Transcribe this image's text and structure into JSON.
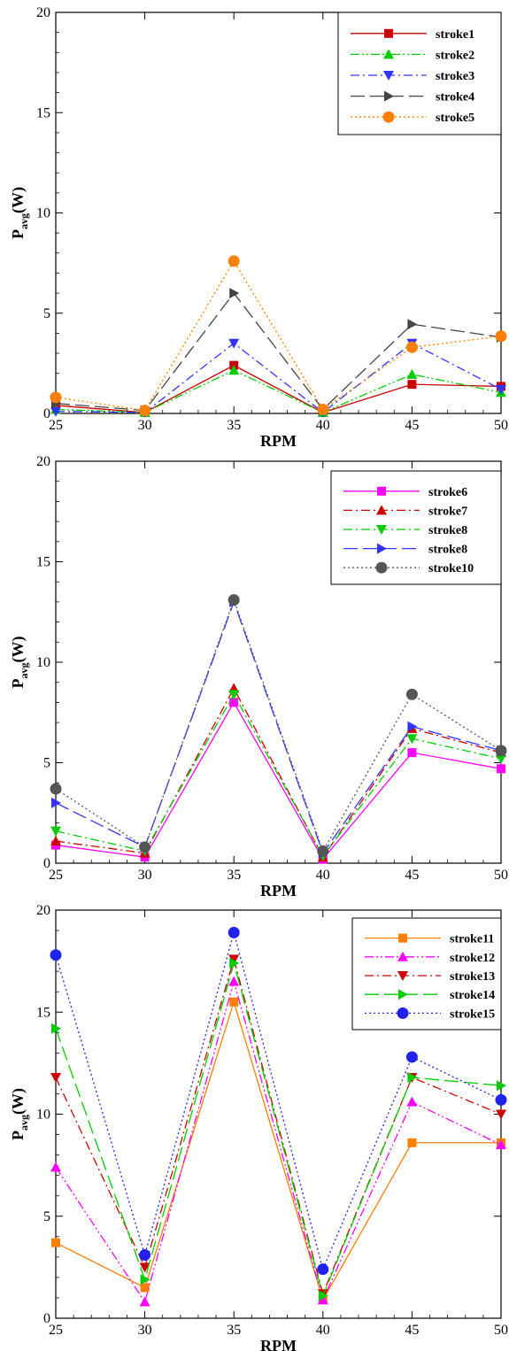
{
  "chart_data": [
    {
      "type": "line",
      "xlabel": "RPM",
      "ylabel": "P",
      "ylabel_sub": "avg",
      "ylabel_unit": "(W)",
      "xlim": [
        25,
        50
      ],
      "ylim": [
        0,
        20
      ],
      "x": [
        25,
        30,
        35,
        40,
        45,
        50
      ],
      "x_ticks": [
        "25",
        "30",
        "35",
        "40",
        "45",
        "50"
      ],
      "y_ticks": [
        "0",
        "5",
        "10",
        "15",
        "20"
      ],
      "grid": false,
      "legend_position": "top-right",
      "series": [
        {
          "name": "stroke1",
          "color": "#cc0000",
          "marker": "square",
          "dash": "solid",
          "values": [
            0.4,
            0.05,
            2.4,
            0.05,
            1.45,
            1.35
          ]
        },
        {
          "name": "stroke2",
          "color": "#00cc00",
          "marker": "triangle-up",
          "dash": "dashdotdot",
          "values": [
            0.2,
            0.05,
            2.15,
            0.05,
            1.95,
            1.05
          ]
        },
        {
          "name": "stroke3",
          "color": "#3333ff",
          "marker": "triangle-down",
          "dash": "dashdot",
          "values": [
            0.1,
            0.05,
            3.5,
            0.05,
            3.5,
            1.2
          ]
        },
        {
          "name": "stroke4",
          "color": "#444444",
          "marker": "triangle-right",
          "dash": "longdash",
          "values": [
            0.5,
            0.15,
            6.0,
            0.2,
            4.45,
            3.8
          ]
        },
        {
          "name": "stroke5",
          "color": "#ff8000",
          "marker": "circle",
          "dash": "dot",
          "values": [
            0.8,
            0.15,
            7.6,
            0.2,
            3.3,
            3.85
          ]
        }
      ]
    },
    {
      "type": "line",
      "xlabel": "RPM",
      "ylabel": "P",
      "ylabel_sub": "avg",
      "ylabel_unit": "(W)",
      "xlim": [
        25,
        50
      ],
      "ylim": [
        0,
        20
      ],
      "x": [
        25,
        30,
        35,
        40,
        45,
        50
      ],
      "x_ticks": [
        "25",
        "30",
        "35",
        "40",
        "45",
        "50"
      ],
      "y_ticks": [
        "0",
        "5",
        "10",
        "15",
        "20"
      ],
      "grid": false,
      "legend_position": "top-right",
      "series": [
        {
          "name": "stroke6",
          "color": "#ff00ff",
          "marker": "square",
          "dash": "solid",
          "values": [
            0.9,
            0.3,
            8.0,
            0.2,
            5.5,
            4.7
          ]
        },
        {
          "name": "stroke7",
          "color": "#cc0000",
          "marker": "triangle-up",
          "dash": "dashdot",
          "values": [
            1.1,
            0.5,
            8.7,
            0.3,
            6.7,
            5.5
          ]
        },
        {
          "name": "stroke8",
          "color": "#00cc00",
          "marker": "triangle-down",
          "dash": "dashdot",
          "values": [
            1.6,
            0.6,
            8.4,
            0.35,
            6.2,
            5.2
          ]
        },
        {
          "name": "stroke8",
          "color": "#3333ff",
          "marker": "triangle-right",
          "dash": "longdash",
          "values": [
            3.0,
            0.8,
            13.0,
            0.5,
            6.8,
            5.6
          ]
        },
        {
          "name": "stroke10",
          "color": "#555555",
          "marker": "circle",
          "dash": "dot",
          "values": [
            3.7,
            0.8,
            13.1,
            0.6,
            8.4,
            5.6
          ]
        }
      ]
    },
    {
      "type": "line",
      "xlabel": "RPM",
      "ylabel": "P",
      "ylabel_sub": "avg",
      "ylabel_unit": "(W)",
      "xlim": [
        25,
        50
      ],
      "ylim": [
        0,
        20
      ],
      "x": [
        25,
        30,
        35,
        40,
        45,
        50
      ],
      "x_ticks": [
        "25",
        "30",
        "35",
        "40",
        "45",
        "50"
      ],
      "y_ticks": [
        "0",
        "5",
        "10",
        "15",
        "20"
      ],
      "grid": false,
      "legend_position": "top-right",
      "series": [
        {
          "name": "stroke11",
          "color": "#ff8000",
          "marker": "square",
          "dash": "solid",
          "values": [
            3.7,
            1.5,
            15.5,
            0.9,
            8.6,
            8.6
          ]
        },
        {
          "name": "stroke12",
          "color": "#ff00ff",
          "marker": "triangle-up",
          "dash": "dashdotdot",
          "values": [
            7.4,
            0.8,
            16.5,
            0.9,
            10.6,
            8.5
          ]
        },
        {
          "name": "stroke13",
          "color": "#cc0000",
          "marker": "triangle-down",
          "dash": "dashdot",
          "values": [
            11.8,
            2.5,
            17.6,
            1.2,
            11.8,
            10.0
          ]
        },
        {
          "name": "stroke14",
          "color": "#00cc00",
          "marker": "triangle-right",
          "dash": "longdash",
          "values": [
            14.2,
            1.9,
            17.4,
            1.1,
            11.8,
            11.4
          ]
        },
        {
          "name": "stroke15",
          "color": "#2222ee",
          "marker": "circle",
          "dash": "dot",
          "values": [
            17.8,
            3.1,
            18.9,
            2.4,
            12.8,
            10.7
          ]
        }
      ]
    }
  ]
}
